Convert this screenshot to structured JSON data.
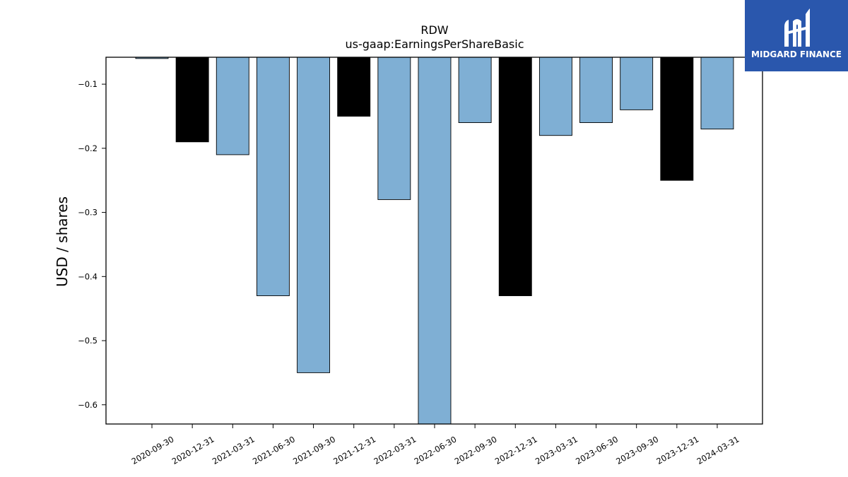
{
  "brand": {
    "name": "MIDGARD FINANCE",
    "bg_color": "#2a57ad",
    "icon": "midgard-logo-icon"
  },
  "chart_data": {
    "type": "bar",
    "title": "RDW",
    "subtitle": "us-gaap:EarningsPerShareBasic",
    "xlabel": "",
    "ylabel": "USD / shares",
    "categories": [
      "2020-09-30",
      "2020-12-31",
      "2021-03-31",
      "2021-06-30",
      "2021-09-30",
      "2021-12-31",
      "2022-03-31",
      "2022-06-30",
      "2022-09-30",
      "2022-12-31",
      "2023-03-31",
      "2023-06-30",
      "2023-09-30",
      "2023-12-31",
      "2024-03-31"
    ],
    "values": [
      -0.06,
      -0.19,
      -0.21,
      -0.43,
      -0.55,
      -0.15,
      -0.28,
      -0.63,
      -0.16,
      -0.43,
      -0.18,
      -0.16,
      -0.14,
      -0.25,
      -0.17
    ],
    "bar_colors": [
      "#7fafd4",
      "#000000",
      "#7fafd4",
      "#7fafd4",
      "#7fafd4",
      "#000000",
      "#7fafd4",
      "#7fafd4",
      "#7fafd4",
      "#000000",
      "#7fafd4",
      "#7fafd4",
      "#7fafd4",
      "#000000",
      "#7fafd4"
    ],
    "ylim": [
      -0.63,
      -0.058
    ],
    "yticks": [
      -0.1,
      -0.2,
      -0.3,
      -0.4,
      -0.5,
      -0.6
    ],
    "ytick_labels": [
      "−0.1",
      "−0.2",
      "−0.3",
      "−0.4",
      "−0.5",
      "−0.6"
    ],
    "grid": false,
    "legend": "none"
  }
}
